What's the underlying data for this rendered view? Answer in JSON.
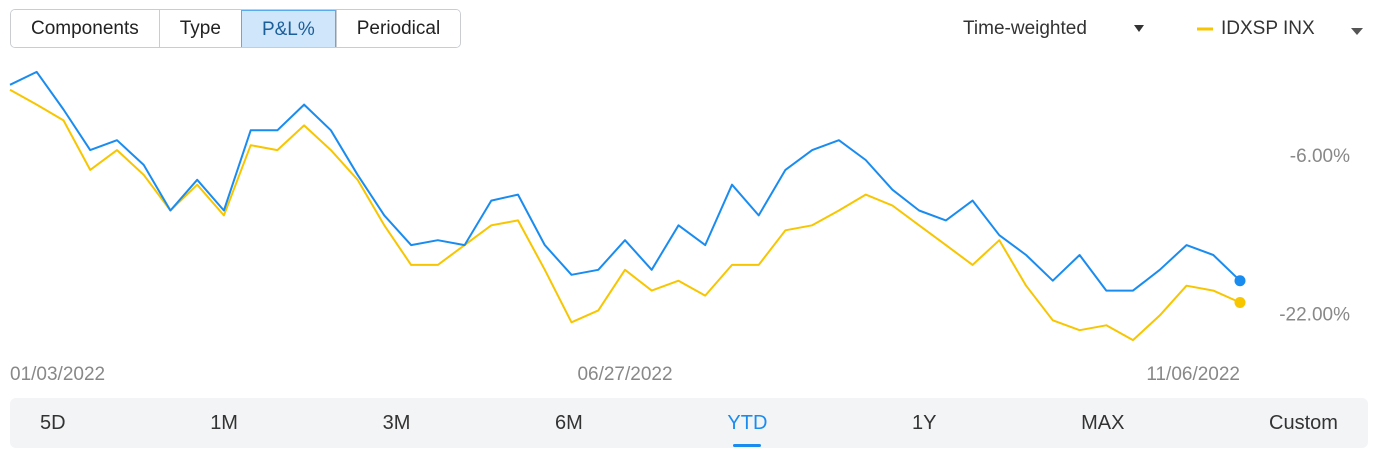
{
  "tabs": [
    "Components",
    "Type",
    "P&L%",
    "Periodical"
  ],
  "selected_tab": 2,
  "return_method": "Time-weighted",
  "ranges": [
    "5D",
    "1M",
    "3M",
    "6M",
    "YTD",
    "1Y",
    "MAX",
    "Custom"
  ],
  "selected_range": 4,
  "chart_data": {
    "type": "line",
    "categories": [
      "01/03/2022",
      null,
      null,
      null,
      null,
      null,
      null,
      null,
      null,
      null,
      null,
      null,
      null,
      null,
      null,
      null,
      null,
      null,
      null,
      null,
      null,
      null,
      null,
      "06/27/2022",
      null,
      null,
      null,
      null,
      null,
      null,
      null,
      null,
      null,
      null,
      null,
      null,
      null,
      null,
      null,
      null,
      null,
      null,
      null,
      null,
      null,
      null,
      "11/06/2022"
    ],
    "series": [
      {
        "color": "#1a8cf0",
        "values": [
          1.3,
          2.6,
          -1.2,
          -5.3,
          -4.3,
          -6.8,
          -11.4,
          -8.3,
          -11.4,
          -3.3,
          -3.3,
          -0.7,
          -3.3,
          -7.8,
          -11.9,
          -14.9,
          -14.4,
          -14.9,
          -10.4,
          -9.8,
          -14.9,
          -17.9,
          -17.4,
          -14.4,
          -17.4,
          -12.9,
          -14.9,
          -8.8,
          -11.9,
          -7.3,
          -5.3,
          -4.3,
          -6.3,
          -9.3,
          -11.4,
          -12.4,
          -10.4,
          -13.9,
          -15.9,
          -18.5,
          -15.9,
          -19.5,
          -19.5,
          -17.4,
          -14.9,
          -15.9,
          -18.5
        ]
      },
      {
        "name": "IDXSP INX",
        "color": "#f7c600",
        "values": [
          0.8,
          -0.7,
          -2.3,
          -7.3,
          -5.3,
          -7.8,
          -11.4,
          -8.8,
          -11.9,
          -4.8,
          -5.3,
          -2.8,
          -5.3,
          -8.3,
          -12.9,
          -16.9,
          -16.9,
          -14.9,
          -12.9,
          -12.4,
          -17.4,
          -22.7,
          -21.5,
          -17.4,
          -19.5,
          -18.5,
          -20.0,
          -16.9,
          -16.9,
          -13.4,
          -12.9,
          -11.4,
          -9.8,
          -10.9,
          -12.9,
          -14.9,
          -16.9,
          -14.4,
          -19.0,
          -22.5,
          -23.5,
          -23.0,
          -24.5,
          -22.0,
          -19.0,
          -19.5,
          -20.7
        ]
      }
    ],
    "ylim": [
      -25.5,
      3.3
    ],
    "yticks": [
      {
        "value": -6,
        "label": "-6.00%"
      },
      {
        "value": -22,
        "label": "-22.00%"
      }
    ],
    "grid": false
  }
}
